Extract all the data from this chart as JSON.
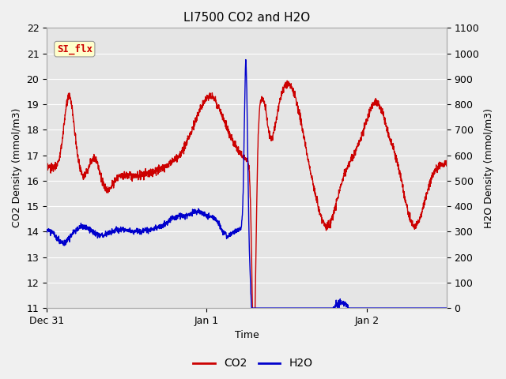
{
  "title": "LI7500 CO2 and H2O",
  "xlabel": "Time",
  "ylabel_left": "CO2 Density (mmol/m3)",
  "ylabel_right": "H2O Density (mmol/m3)",
  "co2_color": "#cc0000",
  "h2o_color": "#0000cc",
  "ylim_left": [
    11.0,
    22.0
  ],
  "ylim_right": [
    0,
    1100
  ],
  "yticks_left": [
    11.0,
    12.0,
    13.0,
    14.0,
    15.0,
    16.0,
    17.0,
    18.0,
    19.0,
    20.0,
    21.0,
    22.0
  ],
  "yticks_right": [
    0,
    100,
    200,
    300,
    400,
    500,
    600,
    700,
    800,
    900,
    1000,
    1100
  ],
  "xtick_labels": [
    "Dec 31",
    "Jan 1",
    "Jan 2"
  ],
  "xtick_positions": [
    0,
    1.0,
    2.0
  ],
  "xlim": [
    0,
    2.5
  ],
  "plot_bg_color": "#e5e5e5",
  "fig_bg_color": "#f0f0f0",
  "grid_color": "#ffffff",
  "legend_label_co2": "CO2",
  "legend_label_h2o": "H2O",
  "annotation_text": "SI_flx",
  "annotation_color": "#cc0000",
  "annotation_bg": "#ffffcc",
  "annotation_edge": "#999999",
  "title_fontsize": 11,
  "axis_fontsize": 9,
  "tick_fontsize": 9,
  "legend_fontsize": 10,
  "linewidth": 1.0
}
